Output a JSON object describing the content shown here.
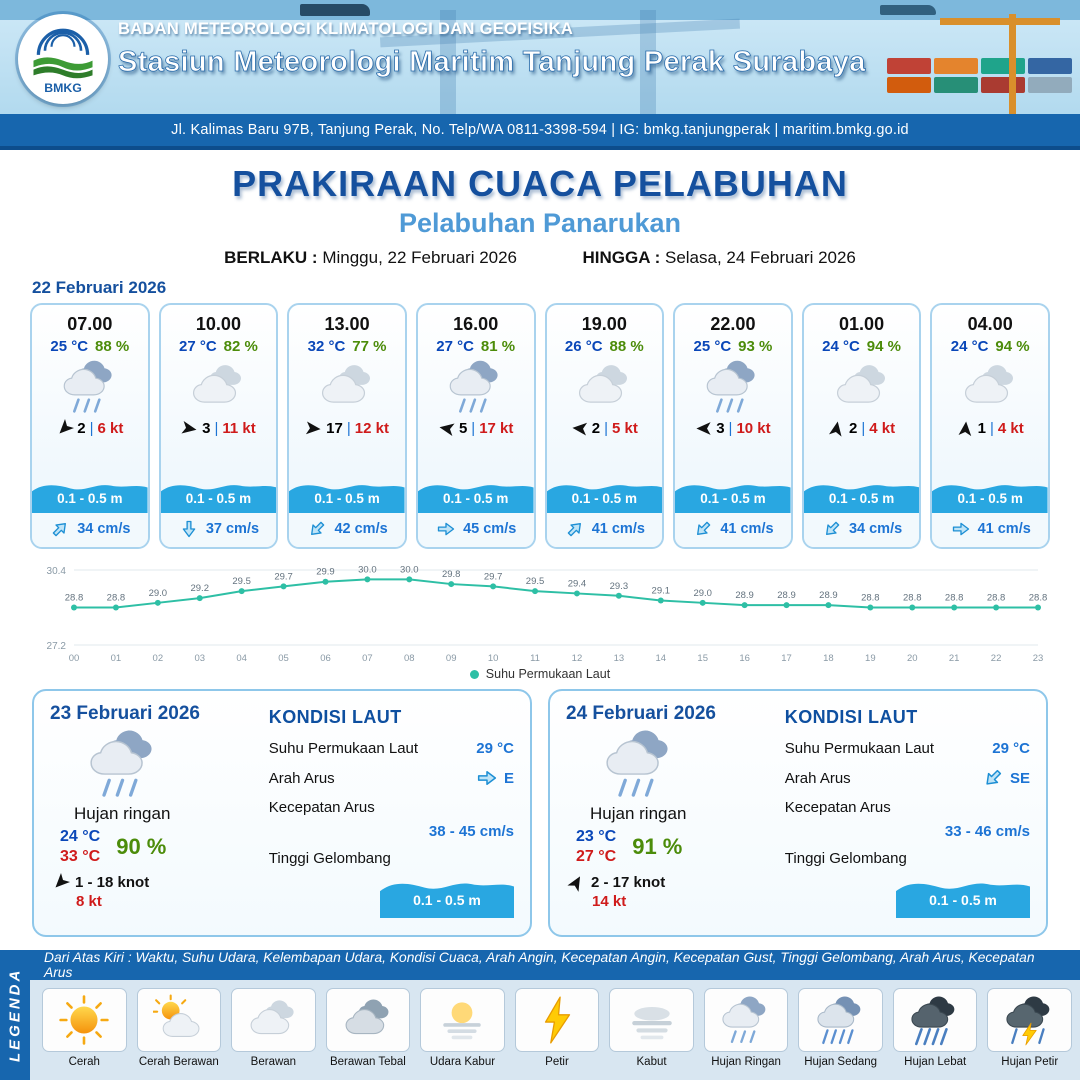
{
  "colors": {
    "primary": "#1766ae",
    "title": "#15509e",
    "subtitle": "#4f9ad6",
    "wave": "#29a7e1",
    "temp": "#0a47b8",
    "humidity": "#4c8c0a",
    "gust": "#cf1b1b",
    "current": "#1d74d4",
    "chart_line": "#2ebfa5"
  },
  "ui": {
    "divider": "|"
  },
  "header": {
    "org": "BADAN METEOROLOGI KLIMATOLOGI DAN GEOFISIKA",
    "station": "Stasiun Meteorologi Maritim Tanjung Perak Surabaya",
    "address": "Jl. Kalimas Baru 97B, Tanjung Perak, No. Telp/WA 0811-3398-594 | IG: bmkg.tanjungperak | maritim.bmkg.go.id",
    "logo_text": "BMKG"
  },
  "title": {
    "main": "PRAKIRAAN CUACA PELABUHAN",
    "sub": "Pelabuhan Panarukan",
    "berlaku_label": "BERLAKU :",
    "berlaku_value": "Minggu, 22 Februari 2026",
    "hingga_label": "HINGGA :",
    "hingga_value": "Selasa, 24 Februari 2026"
  },
  "hourly": {
    "date": "22 Februari 2026",
    "cards": [
      {
        "time": "07.00",
        "temp": "25 °C",
        "rh": "88 %",
        "icon": "hujan-ringan",
        "wind_dir": 135,
        "wind": "2",
        "gust": "6 kt",
        "wave": "0.1 - 0.5 m",
        "current_dir": -45,
        "current": "34 cm/s"
      },
      {
        "time": "10.00",
        "temp": "27 °C",
        "rh": "82 %",
        "icon": "berawan",
        "wind_dir": 10,
        "wind": "3",
        "gust": "11 kt",
        "wave": "0.1 - 0.5 m",
        "current_dir": 90,
        "current": "37 cm/s"
      },
      {
        "time": "13.00",
        "temp": "32 °C",
        "rh": "77 %",
        "icon": "berawan",
        "wind_dir": 5,
        "wind": "17",
        "gust": "12 kt",
        "wave": "0.1 - 0.5 m",
        "current_dir": 135,
        "current": "42 cm/s"
      },
      {
        "time": "16.00",
        "temp": "27 °C",
        "rh": "81 %",
        "icon": "hujan-ringan",
        "wind_dir": 190,
        "wind": "5",
        "gust": "17 kt",
        "wave": "0.1 - 0.5 m",
        "current_dir": 0,
        "current": "45 cm/s"
      },
      {
        "time": "19.00",
        "temp": "26 °C",
        "rh": "88 %",
        "icon": "berawan",
        "wind_dir": 185,
        "wind": "2",
        "gust": "5 kt",
        "wave": "0.1 - 0.5 m",
        "current_dir": -45,
        "current": "41 cm/s"
      },
      {
        "time": "22.00",
        "temp": "25 °C",
        "rh": "93 %",
        "icon": "hujan-ringan",
        "wind_dir": 180,
        "wind": "3",
        "gust": "10 kt",
        "wave": "0.1 - 0.5 m",
        "current_dir": 135,
        "current": "41 cm/s"
      },
      {
        "time": "01.00",
        "temp": "24 °C",
        "rh": "94 %",
        "icon": "berawan",
        "wind_dir": -80,
        "wind": "2",
        "gust": "4 kt",
        "wave": "0.1 - 0.5 m",
        "current_dir": 135,
        "current": "34 cm/s"
      },
      {
        "time": "04.00",
        "temp": "24 °C",
        "rh": "94 %",
        "icon": "berawan",
        "wind_dir": -85,
        "wind": "1",
        "gust": "4 kt",
        "wave": "0.1 - 0.5 m",
        "current_dir": 0,
        "current": "41 cm/s"
      }
    ]
  },
  "chart_data": {
    "type": "line",
    "legend": "Suhu Permukaan Laut",
    "x": [
      "00",
      "01",
      "02",
      "03",
      "04",
      "05",
      "06",
      "07",
      "08",
      "09",
      "10",
      "11",
      "12",
      "13",
      "14",
      "15",
      "16",
      "17",
      "18",
      "19",
      "20",
      "21",
      "22",
      "23"
    ],
    "values": [
      28.8,
      28.8,
      29.0,
      29.2,
      29.5,
      29.7,
      29.9,
      30.0,
      30.0,
      29.8,
      29.7,
      29.5,
      29.4,
      29.3,
      29.1,
      29.0,
      28.9,
      28.9,
      28.9,
      28.8,
      28.8,
      28.8,
      28.8,
      28.8
    ],
    "ylim": [
      27.2,
      30.4
    ],
    "grid": "minimal",
    "legend_position": "bottom"
  },
  "daily": [
    {
      "date": "23 Februari 2026",
      "icon": "hujan-ringan",
      "condition": "Hujan ringan",
      "temp_min": "24 °C",
      "temp_max": "33 °C",
      "rh": "90 %",
      "wind_dir": 135,
      "wind": "1 - 18 knot",
      "gust": "8 kt",
      "sea": {
        "heading": "KONDISI LAUT",
        "sst_label": "Suhu Permukaan Laut",
        "sst": "29 °C",
        "arus_label": "Arah Arus",
        "arus_dir": 0,
        "arus_text": "E",
        "kecepatan_label": "Kecepatan Arus",
        "kecepatan": "38 - 45 cm/s",
        "gelombang_label": "Tinggi Gelombang",
        "gelombang": "0.1 - 0.5 m"
      }
    },
    {
      "date": "24 Februari 2026",
      "icon": "hujan-ringan",
      "condition": "Hujan ringan",
      "temp_min": "23 °C",
      "temp_max": "27 °C",
      "rh": "91 %",
      "wind_dir": -60,
      "wind": "2 - 17 knot",
      "gust": "14 kt",
      "sea": {
        "heading": "KONDISI LAUT",
        "sst_label": "Suhu Permukaan Laut",
        "sst": "29 °C",
        "arus_label": "Arah Arus",
        "arus_dir": 135,
        "arus_text": "SE",
        "kecepatan_label": "Kecepatan Arus",
        "kecepatan": "33 - 46 cm/s",
        "gelombang_label": "Tinggi Gelombang",
        "gelombang": "0.1 - 0.5 m"
      }
    }
  ],
  "legend": {
    "title": "LEGENDA",
    "caption": "Dari Atas Kiri : Waktu, Suhu Udara, Kelembapan Udara, Kondisi Cuaca, Arah Angin, Kecepatan Angin, Kecepatan Gust, Tinggi Gelombang, Arah Arus, Kecepatan Arus",
    "items": [
      {
        "label": "Cerah",
        "icon": "cerah"
      },
      {
        "label": "Cerah Berawan",
        "icon": "cerah-berawan"
      },
      {
        "label": "Berawan",
        "icon": "berawan"
      },
      {
        "label": "Berawan Tebal",
        "icon": "berawan-tebal"
      },
      {
        "label": "Udara Kabur",
        "icon": "udara-kabur"
      },
      {
        "label": "Petir",
        "icon": "petir"
      },
      {
        "label": "Kabut",
        "icon": "kabut"
      },
      {
        "label": "Hujan Ringan",
        "icon": "hujan-ringan"
      },
      {
        "label": "Hujan Sedang",
        "icon": "hujan-sedang"
      },
      {
        "label": "Hujan Lebat",
        "icon": "hujan-lebat"
      },
      {
        "label": "Hujan Petir",
        "icon": "hujan-petir"
      }
    ]
  }
}
